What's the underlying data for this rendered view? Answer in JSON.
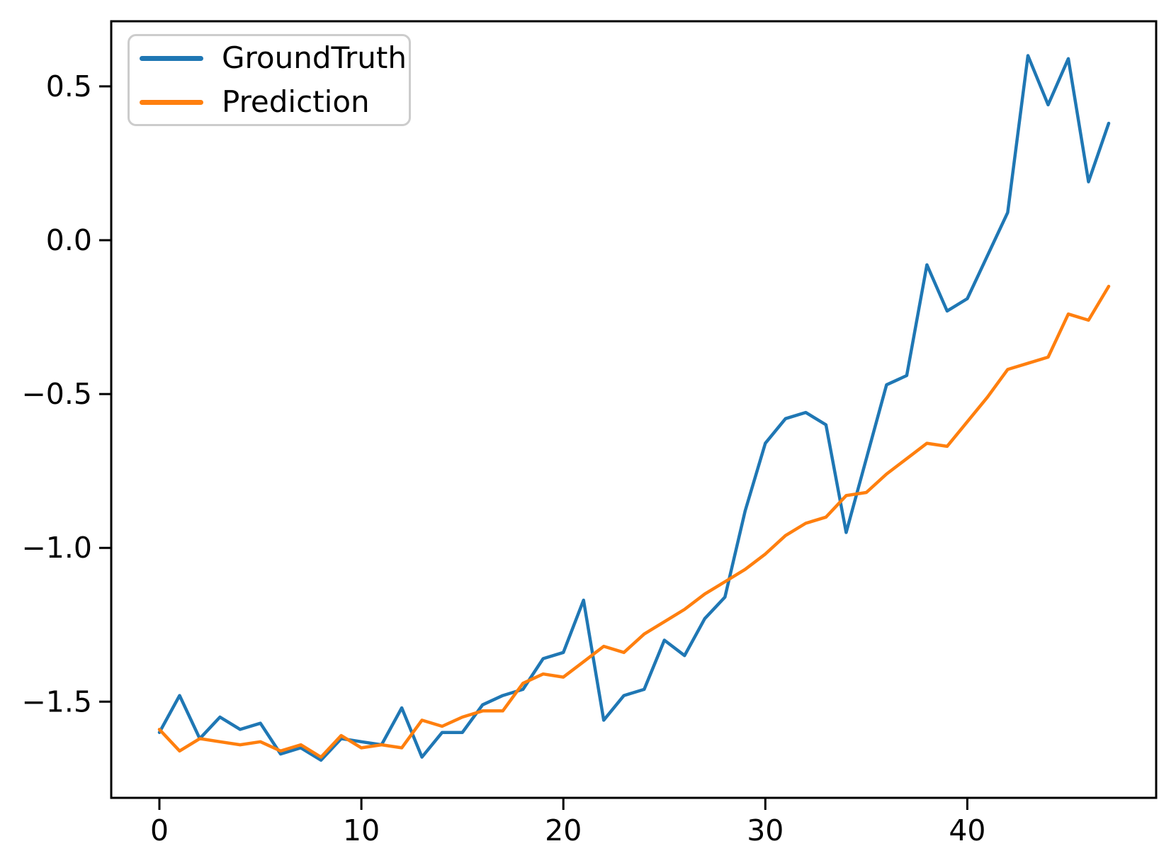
{
  "chart_data": {
    "type": "line",
    "title": "",
    "xlabel": "",
    "ylabel": "",
    "grid": false,
    "legend_position": "upper left",
    "line_width": 4.5,
    "frame_color": "#000000",
    "xlim": [
      -2.35,
      49.35
    ],
    "ylim": [
      -1.8125,
      0.7116
    ],
    "x_ticks": [
      0,
      10,
      20,
      30,
      40
    ],
    "x_tick_labels": [
      "0",
      "10",
      "20",
      "30",
      "40"
    ],
    "y_ticks": [
      0.5,
      0.0,
      -0.5,
      -1.0,
      -1.5
    ],
    "y_tick_labels": [
      "0.5",
      "0.0",
      "−0.5",
      "−1.0",
      "−1.5"
    ],
    "x": [
      0,
      1,
      2,
      3,
      4,
      5,
      6,
      7,
      8,
      9,
      10,
      11,
      12,
      13,
      14,
      15,
      16,
      17,
      18,
      19,
      20,
      21,
      22,
      23,
      24,
      25,
      26,
      27,
      28,
      29,
      30,
      31,
      32,
      33,
      34,
      35,
      36,
      37,
      38,
      39,
      40,
      41,
      42,
      43,
      44,
      45,
      46,
      47
    ],
    "series": [
      {
        "name": "GroundTruth",
        "color": "#1f77b4",
        "values": [
          -1.6,
          -1.48,
          -1.62,
          -1.55,
          -1.59,
          -1.57,
          -1.67,
          -1.65,
          -1.69,
          -1.62,
          -1.63,
          -1.64,
          -1.52,
          -1.68,
          -1.6,
          -1.6,
          -1.51,
          -1.48,
          -1.46,
          -1.36,
          -1.34,
          -1.17,
          -1.56,
          -1.48,
          -1.46,
          -1.3,
          -1.35,
          -1.23,
          -1.16,
          -0.88,
          -0.66,
          -0.58,
          -0.56,
          -0.6,
          -0.95,
          -0.71,
          -0.47,
          -0.44,
          -0.08,
          -0.23,
          -0.19,
          -0.05,
          0.09,
          0.6,
          0.44,
          0.59,
          0.19,
          0.38
        ]
      },
      {
        "name": "Prediction",
        "color": "#ff7f0e",
        "values": [
          -1.59,
          -1.66,
          -1.62,
          -1.63,
          -1.64,
          -1.63,
          -1.66,
          -1.64,
          -1.68,
          -1.61,
          -1.65,
          -1.64,
          -1.65,
          -1.56,
          -1.58,
          -1.55,
          -1.53,
          -1.53,
          -1.44,
          -1.41,
          -1.42,
          -1.37,
          -1.32,
          -1.34,
          -1.28,
          -1.24,
          -1.2,
          -1.15,
          -1.11,
          -1.07,
          -1.02,
          -0.96,
          -0.92,
          -0.9,
          -0.83,
          -0.82,
          -0.76,
          -0.71,
          -0.66,
          -0.67,
          -0.59,
          -0.51,
          -0.42,
          -0.4,
          -0.38,
          -0.24,
          -0.26,
          -0.15
        ]
      }
    ]
  }
}
